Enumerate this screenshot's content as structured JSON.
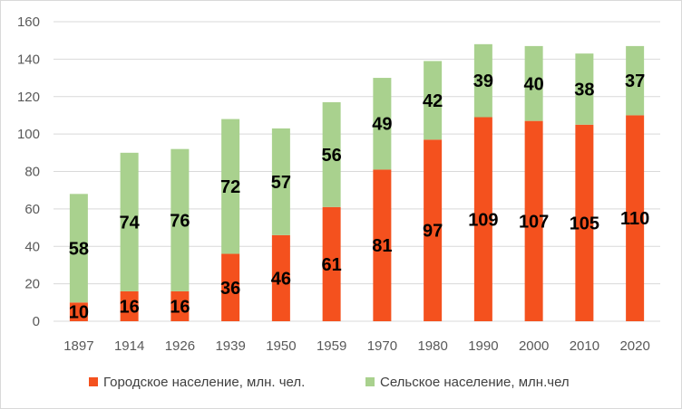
{
  "chart_data": {
    "type": "bar",
    "stacked": true,
    "categories": [
      "1897",
      "1914",
      "1926",
      "1939",
      "1950",
      "1959",
      "1970",
      "1980",
      "1990",
      "2000",
      "2010",
      "2020"
    ],
    "series": [
      {
        "name": "Городское население, млн. чел.",
        "color": "#f4511e",
        "values": [
          10,
          16,
          16,
          36,
          46,
          61,
          81,
          97,
          109,
          107,
          105,
          110
        ],
        "labels": [
          "10",
          "16",
          "16",
          "36",
          "46",
          "61",
          "81",
          "97",
          "109",
          "107",
          "105",
          "110"
        ]
      },
      {
        "name": "Сельское население, млн.чел",
        "color": "#a9d18e",
        "values": [
          58,
          74,
          76,
          72,
          57,
          56,
          49,
          42,
          39,
          40,
          38,
          37
        ],
        "labels": [
          "58",
          "74",
          "76",
          "72",
          "57",
          "56",
          "49",
          "42",
          "39",
          "40",
          "38",
          "37"
        ]
      }
    ],
    "ylim": [
      0,
      160
    ],
    "yticks": [
      0,
      20,
      40,
      60,
      80,
      100,
      120,
      140,
      160
    ],
    "ytick_labels": [
      "0",
      "20",
      "40",
      "60",
      "80",
      "100",
      "120",
      "140",
      "160"
    ],
    "grid": true,
    "legend": "bottom",
    "title": "",
    "xlabel": "",
    "ylabel": ""
  }
}
